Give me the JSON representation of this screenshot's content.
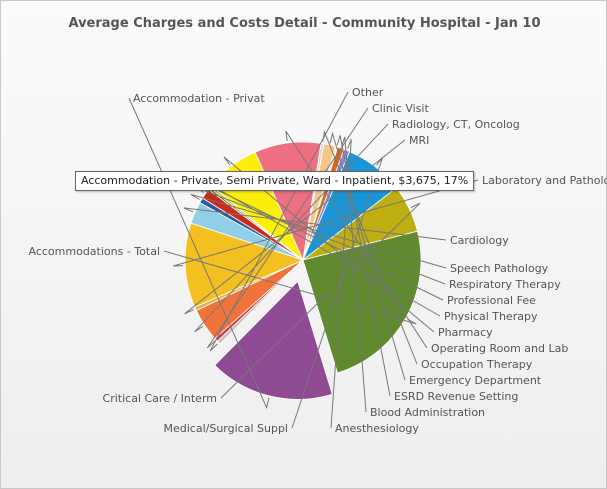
{
  "chart_data": {
    "type": "pie",
    "title": "Average Charges and Costs Detail - Community Hospital - Jan 10",
    "tooltip": "Accommodation - Private, Semi Private, Ward - Inpatient, $3,675, 17%",
    "slices": [
      {
        "label": "Accommodation - Privat",
        "value": 17,
        "color": "#8e4a93",
        "exploded": true
      },
      {
        "label": "Other",
        "value": 0.5,
        "color": "#c0c0c0"
      },
      {
        "label": "Clinic Visit",
        "value": 0.5,
        "color": "#d43d3d"
      },
      {
        "label": "Radiology, CT, Oncolog",
        "value": 4.5,
        "color": "#f0743a"
      },
      {
        "label": "MRI",
        "value": 0.5,
        "color": "#e2b04a"
      },
      {
        "label": "Laboratory and Patholo",
        "value": 11.5,
        "color": "#f4c020"
      },
      {
        "label": "Cardiology",
        "value": 3,
        "color": "#8fd0e8"
      },
      {
        "label": "Speech Pathology",
        "value": 0.7,
        "color": "#2f5aa0"
      },
      {
        "label": "Respiratory Therapy",
        "value": 1.4,
        "color": "#cc2a1a"
      },
      {
        "label": "Professional Fee",
        "value": 0.3,
        "color": "#5f7d2f"
      },
      {
        "label": "Physical Therapy",
        "value": 0.3,
        "color": "#c9b51f"
      },
      {
        "label": "Pharmacy",
        "value": 7.5,
        "color": "#fbef0a"
      },
      {
        "label": "Operating Room and Lab",
        "value": 9,
        "color": "#ee7080"
      },
      {
        "label": "Occupation Therapy",
        "value": 0.4,
        "color": "#dcdcdc"
      },
      {
        "label": "Emergency Department",
        "value": 1.6,
        "color": "#f5c68a"
      },
      {
        "label": "ESRD Revenue Setting",
        "value": 0.3,
        "color": "#e8e8e8"
      },
      {
        "label": "Blood Administration",
        "value": 0.9,
        "color": "#d96a1a"
      },
      {
        "label": "Anesthesiology",
        "value": 0.8,
        "color": "#8a8ad8"
      },
      {
        "label": "Medical/Surgical Suppl",
        "value": 8,
        "color": "#1896d8"
      },
      {
        "label": "Critical Care / Interm",
        "value": 6.5,
        "color": "#bfae12"
      },
      {
        "label": "Accommodations - Total",
        "value": 24,
        "color": "#5f8a2e"
      }
    ]
  }
}
